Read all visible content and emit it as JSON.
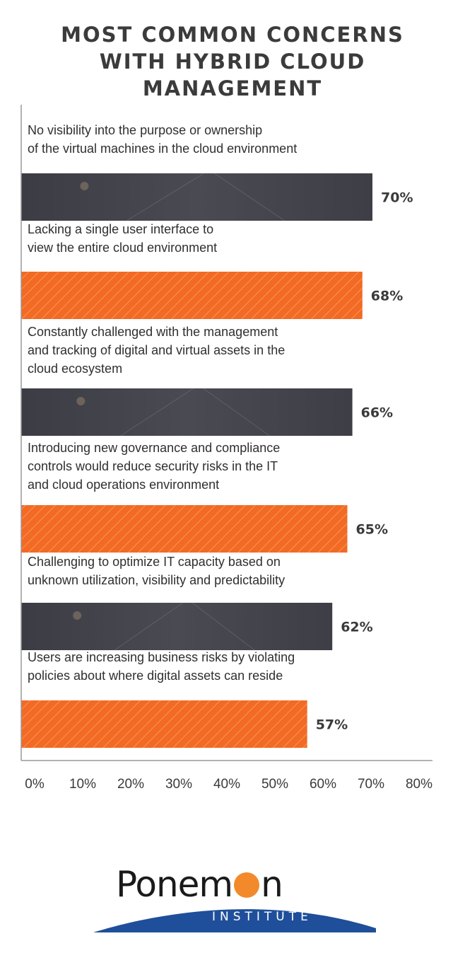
{
  "title_lines": [
    "MOST COMMON CONCERNS",
    "WITH HYBRID CLOUD",
    "MANAGEMENT"
  ],
  "colors": {
    "dark_bar": "#45454d",
    "orange_bar": "#f26a24",
    "axis": "#9a9a9a"
  },
  "chart_data": {
    "type": "bar",
    "orientation": "horizontal",
    "title": "MOST COMMON CONCERNS WITH HYBRID CLOUD MANAGEMENT",
    "xlim": [
      0,
      80
    ],
    "x_ticks": [
      "0%",
      "10%",
      "20%",
      "30%",
      "40%",
      "50%",
      "60%",
      "70%",
      "80%"
    ],
    "bars": [
      {
        "label_lines": [
          "No visibility into the purpose or ownership",
          "of the virtual machines in the cloud environment"
        ],
        "value": 70,
        "value_label": "70%",
        "style": "dark"
      },
      {
        "label_lines": [
          "Lacking a single user interface to",
          "view the entire cloud environment"
        ],
        "value": 68,
        "value_label": "68%",
        "style": "orange"
      },
      {
        "label_lines": [
          "Constantly challenged with the management",
          "and tracking of digital and virtual assets in the",
          "cloud ecosystem"
        ],
        "value": 66,
        "value_label": "66%",
        "style": "dark"
      },
      {
        "label_lines": [
          "Introducing new governance and compliance",
          "controls would reduce security risks in the IT",
          "and cloud operations environment"
        ],
        "value": 65,
        "value_label": "65%",
        "style": "orange"
      },
      {
        "label_lines": [
          "Challenging to optimize IT capacity based on",
          "unknown utilization, visibility and predictability"
        ],
        "value": 62,
        "value_label": "62%",
        "style": "dark"
      },
      {
        "label_lines": [
          "Users are increasing business risks by violating",
          "policies about where digital assets can reside"
        ],
        "value": 57,
        "value_label": "57%",
        "style": "orange"
      }
    ]
  },
  "logo": {
    "wordmark_start": "Ponem",
    "wordmark_end": "n",
    "subtitle": "INSTITUTE"
  }
}
